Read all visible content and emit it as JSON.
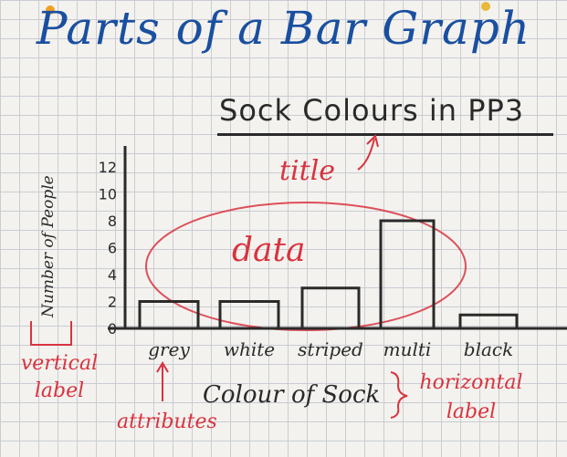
{
  "poster_title": "Parts of a Bar Graph",
  "annotations": {
    "title": "title",
    "data": "data",
    "vertical_label": [
      "vertical",
      "label"
    ],
    "attributes": "attributes",
    "horizontal_label": [
      "horizontal",
      "label"
    ]
  },
  "colors": {
    "poster_title": "#1a4fa0",
    "annotation": "#d9333f",
    "ink": "#2a2a2a"
  },
  "chart_data": {
    "type": "bar",
    "title": "Sock Colours in PP3",
    "xlabel": "Colour of Sock",
    "ylabel": "Number of People",
    "categories": [
      "grey",
      "white",
      "striped",
      "multi",
      "black"
    ],
    "values": [
      2,
      2,
      3,
      8,
      1
    ],
    "ylim": [
      0,
      12
    ],
    "yticks": [
      0,
      2,
      4,
      6,
      8,
      10,
      12
    ],
    "grid": false
  }
}
